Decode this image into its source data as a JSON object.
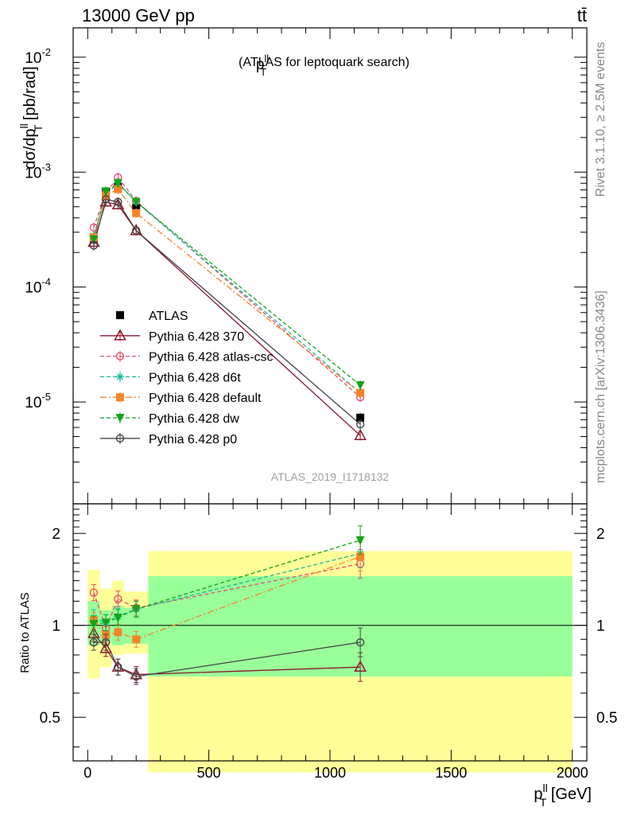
{
  "header": {
    "left": "13000 GeV pp",
    "right": "tt̄"
  },
  "plot_title": {
    "main": "p",
    "sup": "ll",
    "sub": "T",
    "rest": "(ATLAS for leptoquark search)"
  },
  "side_text": {
    "rivet": "Rivet 3.1.10, ≥ 2.5M events",
    "mcplots": "mcplots.cern.ch [arXiv:1306.3436]"
  },
  "watermark": "ATLAS_2019_I1718132",
  "ylabel_top": {
    "prefix": "dσ/dp",
    "sup": "ll",
    "sub": "T",
    "suffix": " [pb/rad]"
  },
  "ylabel_bottom": "Ratio to ATLAS",
  "xlabel": {
    "main": "p",
    "sup": "ll",
    "sub": "T",
    "suffix": " [GeV]"
  },
  "top_ticks": [
    {
      "label": "10",
      "exp": "-5",
      "value": 1e-05
    },
    {
      "label": "10",
      "exp": "-4",
      "value": 0.0001
    },
    {
      "label": "10",
      "exp": "-3",
      "value": 0.001
    },
    {
      "label": "10",
      "exp": "-2",
      "value": 0.01
    }
  ],
  "ratio_ticks": [
    "0.5",
    "1",
    "2"
  ],
  "x_ticks": [
    "0",
    "500",
    "1000",
    "1500",
    "2000"
  ],
  "chart_data": [
    {
      "type": "line",
      "panel": "main",
      "x_scale": "linear",
      "y_scale": "log",
      "xlim": [
        -60,
        2060
      ],
      "ylim": [
        1.3e-06,
        0.018
      ],
      "x": [
        25,
        75,
        125,
        200,
        1125
      ],
      "bins": [
        [
          0,
          50
        ],
        [
          50,
          100
        ],
        [
          100,
          150
        ],
        [
          150,
          250
        ],
        [
          250,
          2000
        ]
      ],
      "legend_position": "middle-left",
      "series": [
        {
          "name": "ATLAS",
          "color": "#000000",
          "marker": "filled-square",
          "values": [
            0.00026,
            0.00068,
            0.00075,
            0.00049,
            7.3e-06
          ]
        },
        {
          "name": "Pythia 6.428 370",
          "color": "#8b1a2b",
          "marker": "open-triangle",
          "line": "solid",
          "values": [
            0.000245,
            0.00055,
            0.00052,
            0.00031,
            5.1e-06
          ]
        },
        {
          "name": "Pythia 6.428 atlas-csc",
          "color": "#e8506f",
          "marker": "open-circle",
          "line": "dashed",
          "values": [
            0.00033,
            0.00066,
            0.0009,
            0.00056,
            1.1e-05
          ]
        },
        {
          "name": "Pythia 6.428 d6t",
          "color": "#1ab99a",
          "marker": "asterisk",
          "line": "dashed",
          "values": [
            0.00028,
            0.00063,
            0.00081,
            0.00055,
            1.2e-05
          ]
        },
        {
          "name": "Pythia 6.428 default",
          "color": "#f5842c",
          "marker": "filled-square",
          "line": "dashdot",
          "values": [
            0.00027,
            0.00063,
            0.00071,
            0.00044,
            1.2e-05
          ]
        },
        {
          "name": "Pythia 6.428 dw",
          "color": "#11a51a",
          "marker": "filled-triangle-down",
          "line": "dashed",
          "values": [
            0.00026,
            0.00068,
            0.0008,
            0.00055,
            1.4e-05
          ]
        },
        {
          "name": "Pythia 6.428 p0",
          "color": "#444444",
          "marker": "open-circle",
          "line": "solid",
          "values": [
            0.00023,
            0.00058,
            0.00055,
            0.00031,
            6.4e-06
          ]
        }
      ]
    },
    {
      "type": "line",
      "panel": "ratio",
      "x_scale": "linear",
      "y_scale": "log",
      "xlim": [
        -60,
        2060
      ],
      "ylim": [
        0.36,
        2.5
      ],
      "reference_line": 1,
      "x": [
        25,
        75,
        125,
        200,
        1125
      ],
      "bins": [
        [
          0,
          50
        ],
        [
          50,
          100
        ],
        [
          100,
          150
        ],
        [
          150,
          250
        ],
        [
          250,
          2000
        ]
      ],
      "band_inner": [
        [
          0.86,
          1.2
        ],
        [
          0.88,
          1.12
        ],
        [
          0.86,
          1.16
        ],
        [
          0.87,
          1.14
        ],
        [
          0.68,
          1.45
        ]
      ],
      "band_outer": [
        [
          0.67,
          1.52
        ],
        [
          0.73,
          1.32
        ],
        [
          0.8,
          1.4
        ],
        [
          0.81,
          1.29
        ],
        [
          0.33,
          1.75
        ]
      ],
      "series": [
        {
          "name": "Pythia 6.428 370",
          "color": "#8b1a2b",
          "values": [
            0.94,
            0.84,
            0.73,
            0.69,
            0.73
          ]
        },
        {
          "name": "Pythia 6.428 atlas-csc",
          "color": "#e8506f",
          "values": [
            1.28,
            0.98,
            1.22,
            1.14,
            1.59
          ]
        },
        {
          "name": "Pythia 6.428 d6t",
          "color": "#1ab99a",
          "values": [
            1.06,
            1.02,
            1.07,
            1.13,
            1.72
          ]
        },
        {
          "name": "Pythia 6.428 default",
          "color": "#f5842c",
          "values": [
            1.04,
            0.93,
            0.95,
            0.9,
            1.68
          ]
        },
        {
          "name": "Pythia 6.428 dw",
          "color": "#11a51a",
          "values": [
            1.01,
            1.02,
            1.06,
            1.13,
            1.9
          ]
        },
        {
          "name": "Pythia 6.428 p0",
          "color": "#444444",
          "values": [
            0.88,
            0.88,
            0.73,
            0.68,
            0.88
          ]
        }
      ]
    }
  ]
}
